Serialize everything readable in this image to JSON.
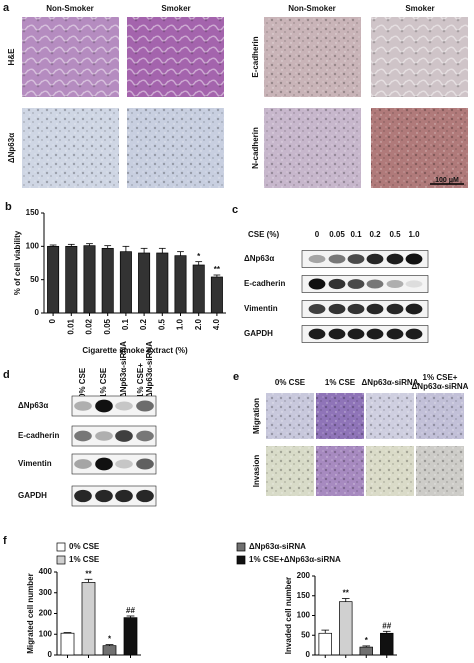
{
  "panel_labels": [
    "a",
    "b",
    "c",
    "d",
    "e",
    "f"
  ],
  "ihc": {
    "columns": [
      "Non-Smoker",
      "Smoker",
      "Non-Smoker",
      "Smoker"
    ],
    "rows_left": [
      "H&E",
      "ΔNp63α"
    ],
    "rows_right": [
      "E-cadherin",
      "N-cadherin"
    ],
    "scale_bar": "100 μM"
  },
  "blot_c": {
    "title": "CSE (%)",
    "lanes": [
      "0",
      "0.05",
      "0.1",
      "0.2",
      "0.5",
      "1.0"
    ],
    "rows": [
      "ΔNp63α",
      "E-cadherin",
      "Vimentin",
      "GAPDH"
    ]
  },
  "blot_d": {
    "lanes": [
      "0% CSE",
      "1% CSE",
      "ΔNp63α-siRNA",
      "1% CSE+",
      "ΔNp63α-siRNA"
    ],
    "rows": [
      "ΔNp63α",
      "E-cadherin",
      "Vimentin",
      "GAPDH"
    ]
  },
  "transwell": {
    "columns": [
      "0% CSE",
      "1% CSE",
      "ΔNp63α-siRNA",
      "1% CSE+",
      "ΔNp63α-siRNA"
    ],
    "rows": [
      "Migration",
      "Invasion"
    ]
  },
  "chart_data": [
    {
      "type": "bar",
      "ylabel": "% of cell viability",
      "xlabel": "Cigarette smoke extract (%)",
      "categories": [
        "0",
        "0.01",
        "0.02",
        "0.05",
        "0.1",
        "0.2",
        "0.5",
        "1.0",
        "2.0",
        "4.0"
      ],
      "values": [
        100,
        100,
        101,
        97,
        92,
        90,
        90,
        86,
        72,
        54
      ],
      "errors": [
        2,
        3,
        3,
        4,
        8,
        7,
        7,
        6,
        5,
        3
      ],
      "annotations": [
        null,
        null,
        null,
        null,
        null,
        null,
        null,
        null,
        "*",
        "**"
      ],
      "color": "#333333",
      "ylim": [
        0,
        150
      ],
      "yticks": [
        0,
        50,
        100,
        150
      ]
    },
    {
      "type": "bar",
      "ylabel": "Migrated cell number",
      "legend": [
        {
          "name": "0% CSE",
          "color": "#ffffff"
        },
        {
          "name": "1% CSE",
          "color": "#d0d0d0"
        },
        {
          "name": "ΔNp63α-siRNA",
          "color": "#707070"
        },
        {
          "name": "1% CSE+ΔNp63α-siRNA",
          "color": "#111111"
        }
      ],
      "categories": [
        null,
        null,
        null,
        null
      ],
      "values": [
        105,
        350,
        45,
        180
      ],
      "errors": [
        3,
        15,
        5,
        8
      ],
      "annotations": [
        null,
        "**",
        "*",
        "##"
      ],
      "ylim": [
        0,
        400
      ],
      "yticks": [
        0,
        100,
        200,
        300,
        400
      ]
    },
    {
      "type": "bar",
      "ylabel": "Invaded cell number",
      "categories": [
        null,
        null,
        null,
        null
      ],
      "values": [
        55,
        135,
        20,
        55
      ],
      "errors": [
        8,
        8,
        3,
        5
      ],
      "annotations": [
        null,
        "**",
        "*",
        "##"
      ],
      "ylim": [
        0,
        200
      ],
      "yticks": [
        0,
        50,
        100,
        150,
        200
      ]
    }
  ]
}
